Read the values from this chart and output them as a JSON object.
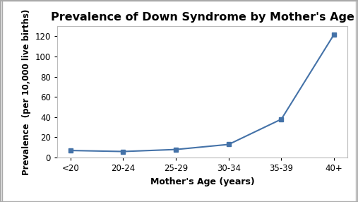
{
  "categories": [
    "<20",
    "20-24",
    "25-29",
    "30-34",
    "35-39",
    "40+"
  ],
  "values": [
    7,
    6,
    8,
    13,
    38,
    122
  ],
  "title": "Prevalence of Down Syndrome by Mother's Age",
  "xlabel": "Mother's Age (years)",
  "ylabel": "Prevalence  (per 10,000 live births)",
  "ylim": [
    0,
    130
  ],
  "yticks": [
    0,
    20,
    40,
    60,
    80,
    100,
    120
  ],
  "line_color": "#4472a8",
  "marker": "s",
  "marker_size": 5,
  "title_fontsize": 11.5,
  "label_fontsize": 9,
  "tick_fontsize": 8.5,
  "background_color": "#ffffff",
  "fig_border_color": "#aaaaaa"
}
